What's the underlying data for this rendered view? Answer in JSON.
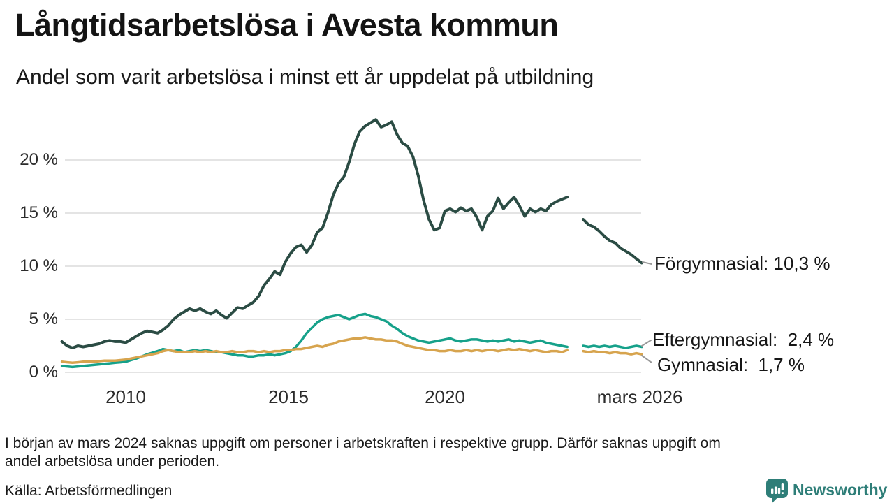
{
  "title": "Långtidsarbetslösa i Avesta kommun",
  "subtitle": "Andel som varit arbetslösa i minst ett år uppdelat på utbildning",
  "footnote_lines": [
    "I början av mars 2024 saknas uppgift om personer i arbetskraften i respektive grupp. Därför saknas uppgift om",
    "andel arbetslösa under perioden."
  ],
  "source": "Källa: Arbetsförmedlingen",
  "logo": {
    "text": "Newsworthy",
    "icon": "speech-bubble-bar-chart",
    "color": "#2e7e78"
  },
  "colors": {
    "background": "#ffffff",
    "grid": "#e4e4e4",
    "connector": "#999999",
    "text": "#161616",
    "forgymnasial": "#2b4c44",
    "eftergymnasial": "#16a18a",
    "gymnasial": "#d7a44e"
  },
  "chart_data": {
    "type": "line",
    "title": "Långtidsarbetslösa i Avesta kommun",
    "subtitle": "Andel som varit arbetslösa i minst ett år uppdelat på utbildning",
    "unit": "%",
    "x_start": 2008.0,
    "x_step_years": 0.166667,
    "x_range": [
      2008.0,
      2026.17
    ],
    "ylim": [
      0,
      24.5
    ],
    "grid": true,
    "legend_position": "right-end-labels",
    "x_ticks": [
      {
        "label": "2010",
        "year": 2010
      },
      {
        "label": "2015",
        "year": 2015
      },
      {
        "label": "2020",
        "year": 2020
      },
      {
        "label": "mars 2026",
        "year": 2026.17
      }
    ],
    "y_ticks": [
      {
        "label": "0 %",
        "value": 0
      },
      {
        "label": "5 %",
        "value": 5
      },
      {
        "label": "10 %",
        "value": 10
      },
      {
        "label": "15 %",
        "value": 15
      },
      {
        "label": "20 %",
        "value": 20
      }
    ],
    "series": [
      {
        "name": "Förgymnasial",
        "color": "#2b4c44",
        "end_value": 10.3,
        "end_label": "Förgymnasial: 10,3 %",
        "values": [
          2.9,
          2.5,
          2.3,
          2.5,
          2.4,
          2.5,
          2.6,
          2.7,
          2.9,
          3.0,
          2.9,
          2.9,
          2.8,
          3.1,
          3.4,
          3.7,
          3.9,
          3.8,
          3.7,
          4.0,
          4.4,
          5.0,
          5.4,
          5.7,
          6.0,
          5.8,
          6.0,
          5.7,
          5.5,
          5.8,
          5.4,
          5.1,
          5.6,
          6.1,
          6.0,
          6.3,
          6.6,
          7.2,
          8.2,
          8.8,
          9.5,
          9.2,
          10.4,
          11.2,
          11.8,
          12.0,
          11.3,
          12.0,
          13.2,
          13.6,
          15.0,
          16.7,
          17.8,
          18.4,
          19.8,
          21.5,
          22.7,
          23.2,
          23.5,
          23.8,
          23.1,
          23.3,
          23.6,
          22.4,
          21.6,
          21.3,
          20.3,
          18.5,
          16.2,
          14.4,
          13.4,
          13.6,
          15.2,
          15.4,
          15.1,
          15.5,
          15.2,
          15.4,
          14.6,
          13.4,
          14.7,
          15.2,
          16.4,
          15.4,
          16.0,
          16.5,
          15.7,
          14.7,
          15.4,
          15.1,
          15.4,
          15.2,
          15.8,
          16.1,
          16.3,
          16.5,
          null,
          null,
          14.4,
          13.9,
          13.7,
          13.3,
          12.8,
          12.4,
          12.2,
          11.7,
          11.4,
          11.1,
          10.7,
          10.3
        ]
      },
      {
        "name": "Eftergymnasial",
        "color": "#16a18a",
        "end_value": 2.4,
        "end_label": "Eftergymnasial:  2,4 %",
        "values": [
          0.6,
          0.55,
          0.5,
          0.55,
          0.6,
          0.65,
          0.7,
          0.75,
          0.8,
          0.85,
          0.9,
          0.95,
          1.0,
          1.15,
          1.3,
          1.5,
          1.7,
          1.85,
          2.0,
          2.2,
          2.1,
          2.0,
          2.1,
          1.9,
          2.0,
          2.1,
          2.0,
          2.1,
          2.0,
          1.9,
          1.9,
          1.8,
          1.7,
          1.6,
          1.6,
          1.5,
          1.5,
          1.6,
          1.6,
          1.7,
          1.6,
          1.7,
          1.8,
          2.0,
          2.4,
          3.0,
          3.7,
          4.2,
          4.7,
          5.0,
          5.2,
          5.3,
          5.4,
          5.2,
          5.0,
          5.2,
          5.4,
          5.5,
          5.3,
          5.2,
          5.0,
          4.8,
          4.4,
          4.1,
          3.7,
          3.4,
          3.2,
          3.0,
          2.9,
          2.8,
          2.9,
          3.0,
          3.1,
          3.2,
          3.0,
          2.9,
          3.0,
          3.1,
          3.1,
          3.0,
          2.9,
          3.0,
          2.9,
          3.0,
          3.1,
          2.9,
          3.0,
          2.9,
          2.8,
          2.9,
          3.0,
          2.8,
          2.7,
          2.6,
          2.5,
          2.4,
          null,
          null,
          2.5,
          2.4,
          2.5,
          2.4,
          2.5,
          2.4,
          2.5,
          2.4,
          2.3,
          2.4,
          2.5,
          2.4
        ]
      },
      {
        "name": "Gymnasial",
        "color": "#d7a44e",
        "end_value": 1.7,
        "end_label": "Gymnasial:  1,7 %",
        "values": [
          1.0,
          0.95,
          0.9,
          0.95,
          1.0,
          1.0,
          1.0,
          1.05,
          1.1,
          1.1,
          1.1,
          1.15,
          1.2,
          1.3,
          1.4,
          1.5,
          1.6,
          1.7,
          1.8,
          2.0,
          2.1,
          2.0,
          1.9,
          1.9,
          1.9,
          2.0,
          1.9,
          2.0,
          1.9,
          2.0,
          1.9,
          1.9,
          2.0,
          1.9,
          1.9,
          2.0,
          2.0,
          1.9,
          2.0,
          1.9,
          2.0,
          2.0,
          2.1,
          2.1,
          2.2,
          2.2,
          2.3,
          2.4,
          2.5,
          2.4,
          2.6,
          2.7,
          2.9,
          3.0,
          3.1,
          3.2,
          3.2,
          3.3,
          3.2,
          3.1,
          3.1,
          3.0,
          3.0,
          2.9,
          2.7,
          2.5,
          2.4,
          2.3,
          2.2,
          2.1,
          2.1,
          2.0,
          2.0,
          2.1,
          2.0,
          2.0,
          2.1,
          2.0,
          2.1,
          2.0,
          2.1,
          2.1,
          2.0,
          2.1,
          2.2,
          2.1,
          2.2,
          2.1,
          2.0,
          2.1,
          2.0,
          1.9,
          2.0,
          2.0,
          1.9,
          2.1,
          null,
          null,
          2.0,
          1.9,
          2.0,
          1.9,
          1.9,
          1.8,
          1.9,
          1.8,
          1.8,
          1.7,
          1.8,
          1.7
        ]
      }
    ]
  }
}
